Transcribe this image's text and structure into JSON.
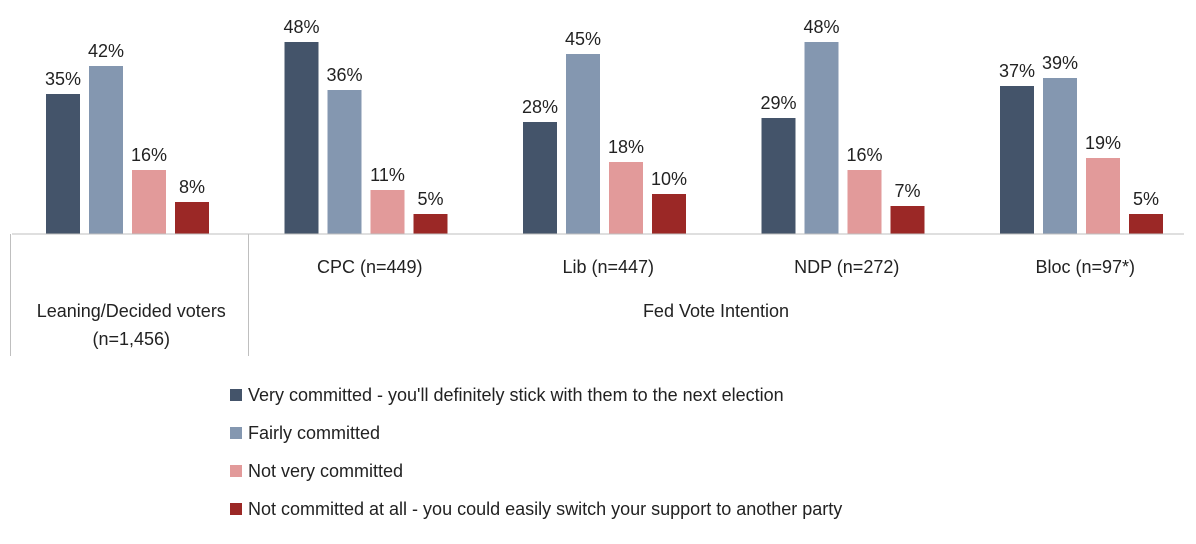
{
  "chart_data": {
    "type": "bar",
    "group_axis_label": "Fed Vote Intention",
    "categories": [
      "Leaning/Decided voters (n=1,456)",
      "CPC (n=449)",
      "Lib (n=447)",
      "NDP (n=272)",
      "Bloc (n=97*)"
    ],
    "category_lines": [
      [
        "Leaning/Decided voters",
        "(n=1,456)"
      ],
      [
        "CPC (n=449)"
      ],
      [
        "Lib (n=447)"
      ],
      [
        "NDP (n=272)"
      ],
      [
        "Bloc (n=97*)"
      ]
    ],
    "series": [
      {
        "name": "Very committed - you'll definitely stick with them to the next election",
        "color": "#44546a",
        "values": [
          35,
          48,
          28,
          29,
          37
        ]
      },
      {
        "name": "Fairly committed",
        "color": "#8497b0",
        "values": [
          42,
          36,
          45,
          48,
          39
        ]
      },
      {
        "name": "Not very committed",
        "color": "#e29a9a",
        "values": [
          16,
          11,
          18,
          16,
          19
        ]
      },
      {
        "name": "Not committed at all - you could easily switch your support to another party",
        "color": "#9b2826",
        "values": [
          8,
          5,
          10,
          7,
          5
        ]
      }
    ],
    "value_suffix": "%",
    "ylim": [
      0,
      50
    ],
    "grid": false,
    "legend_position": "bottom"
  }
}
